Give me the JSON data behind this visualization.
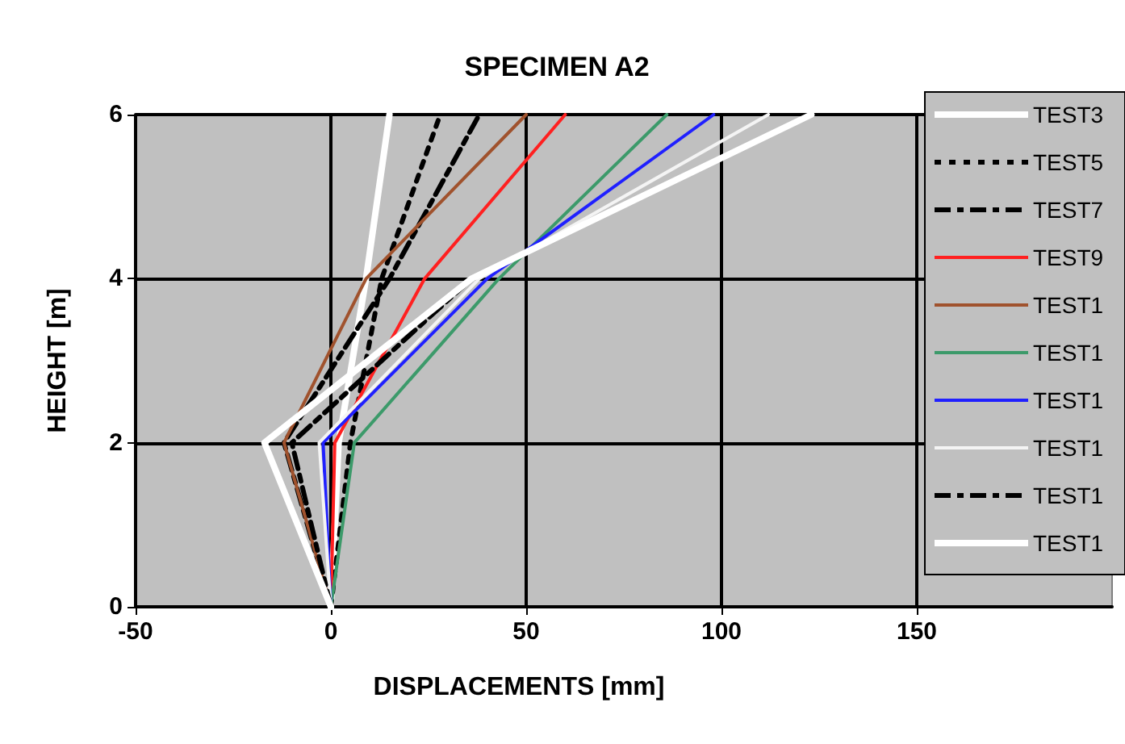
{
  "chart_data": {
    "type": "line",
    "title": "SPECIMEN A2",
    "xlabel": "DISPLACEMENTS [mm]",
    "ylabel": "HEIGHT [m]",
    "xlim": [
      -50,
      200
    ],
    "xticks": [
      -50,
      0,
      50,
      100,
      150
    ],
    "ylim": [
      0,
      6
    ],
    "yticks": [
      0,
      2,
      4,
      6
    ],
    "grid": true,
    "legend": "right",
    "marker": "none",
    "series": [
      {
        "name": "TEST3",
        "color": "#ffffff",
        "line_style": "solid",
        "x": [
          0,
          2,
          9,
          15
        ],
        "values": [
          0,
          2,
          4,
          6
        ]
      },
      {
        "name": "TEST5",
        "color": "#000000",
        "line_style": "dotted",
        "x": [
          0,
          5,
          13,
          28
        ],
        "values": [
          0,
          2,
          4,
          6
        ]
      },
      {
        "name": "TEST7",
        "color": "#000000",
        "line_style": "dashed",
        "x": [
          0,
          -12,
          15,
          38
        ],
        "values": [
          0,
          2,
          4,
          6
        ]
      },
      {
        "name": "TEST9",
        "color": "#ff2020",
        "line_style": "solid",
        "x": [
          0,
          1,
          24,
          60
        ],
        "values": [
          0,
          2,
          4,
          6
        ]
      },
      {
        "name": "TEST1",
        "color": "#a0522d",
        "line_style": "solid",
        "x": [
          0,
          -12,
          9,
          50
        ],
        "values": [
          0,
          2,
          4,
          6
        ]
      },
      {
        "name": "TEST1",
        "color": "#3c9a6a",
        "line_style": "solid",
        "x": [
          0,
          6,
          43,
          86
        ],
        "values": [
          0,
          2,
          4,
          6
        ]
      },
      {
        "name": "TEST1",
        "color": "#2020ff",
        "line_style": "solid",
        "x": [
          0,
          -2,
          40,
          98
        ],
        "values": [
          0,
          2,
          4,
          6
        ]
      },
      {
        "name": "TEST1",
        "color": "#f4f4f4",
        "line_style": "solid",
        "x": [
          0,
          -3,
          38,
          112
        ],
        "values": [
          0,
          2,
          4,
          6
        ]
      },
      {
        "name": "TEST1",
        "color": "#000000",
        "line_style": "dashed",
        "x": [
          0,
          -10,
          36,
          123
        ],
        "values": [
          0,
          2,
          4,
          6
        ]
      },
      {
        "name": "TEST1",
        "color": "#ffffff",
        "line_style": "solid",
        "x": [
          0,
          -17,
          36,
          123
        ],
        "values": [
          0,
          2,
          4,
          6
        ]
      }
    ]
  }
}
